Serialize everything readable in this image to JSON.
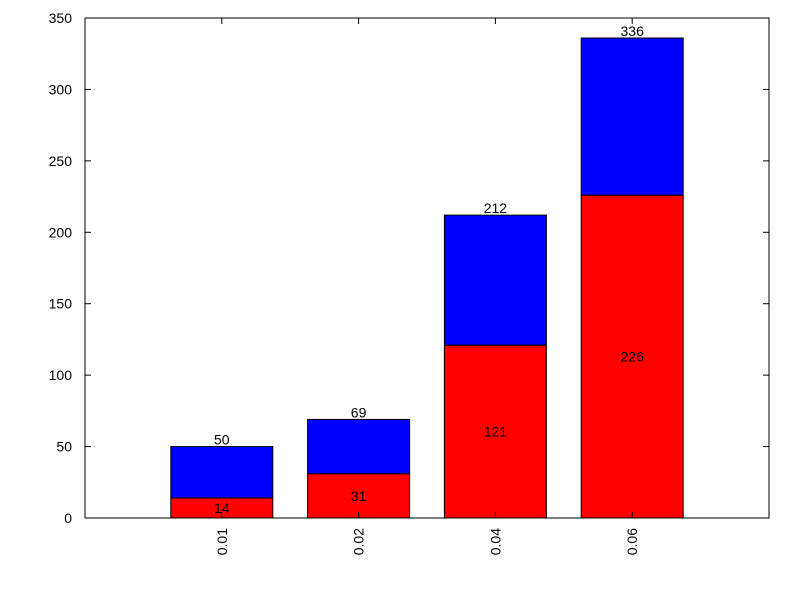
{
  "chart_data": {
    "type": "bar",
    "stacked": true,
    "categories": [
      "0.01",
      "0.02",
      "0.04",
      "0.06"
    ],
    "series": [
      {
        "values": [
          14,
          31,
          121,
          226
        ],
        "color": "#ff0000"
      },
      {
        "values": [
          36,
          38,
          91,
          110
        ],
        "color": "#0000ff"
      }
    ],
    "segment_labels": [
      14,
      31,
      121,
      226
    ],
    "total_labels": [
      50,
      69,
      212,
      336
    ],
    "title": "",
    "xlabel": "",
    "ylabel": "",
    "ylim": [
      0,
      350
    ],
    "yticks": [
      0,
      50,
      100,
      150,
      200,
      250,
      300,
      350
    ],
    "grid": false,
    "legend": "none",
    "x_tick_rotation": -90
  }
}
